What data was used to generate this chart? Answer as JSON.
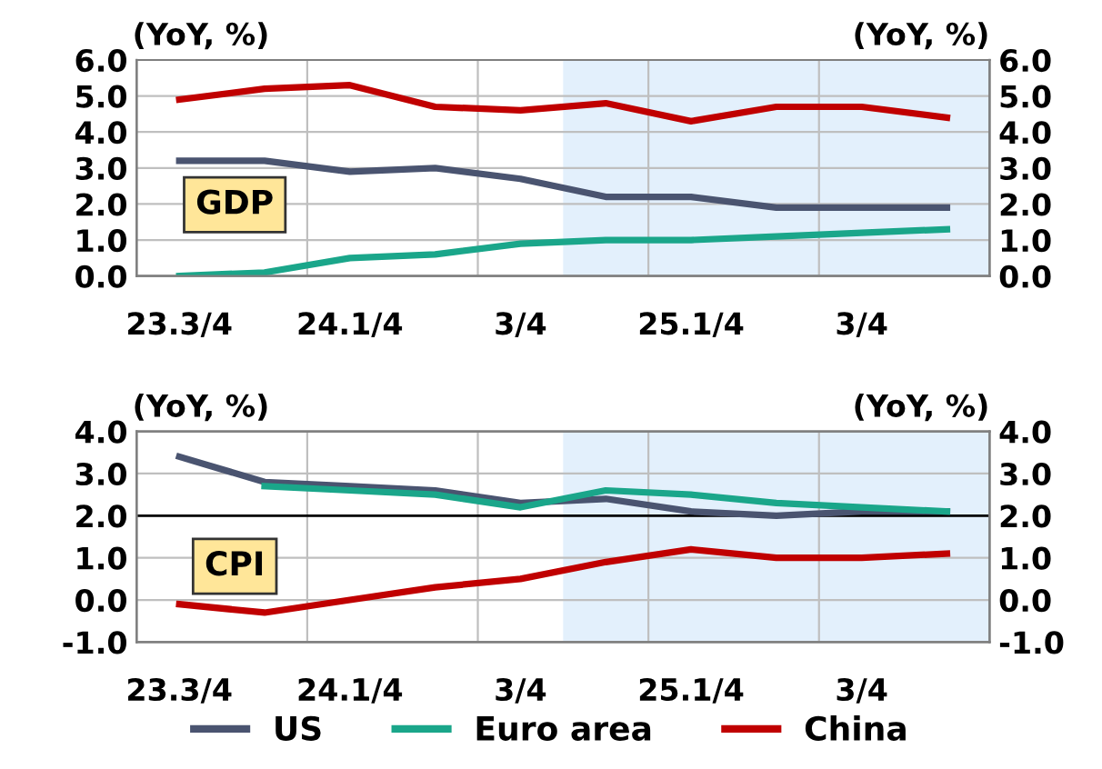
{
  "chart_data": [
    {
      "type": "line",
      "ylabel": "(YoY, %)",
      "y2label": "(YoY, %)",
      "annotations": [
        "GDP"
      ],
      "categories": [
        "23.3/4",
        null,
        "24.1/4",
        null,
        "3/4",
        null,
        "25.1/4",
        null,
        "3/4",
        null
      ],
      "ylim": [
        0,
        6
      ],
      "yticks": [
        {
          "value": 0,
          "label": "0.0"
        },
        {
          "value": 1,
          "label": "1.0"
        },
        {
          "value": 2,
          "label": "2.0"
        },
        {
          "value": 3,
          "label": "3.0"
        },
        {
          "value": 4,
          "label": "4.0"
        },
        {
          "value": 5,
          "label": "5.0"
        },
        {
          "value": 6,
          "label": "6.0"
        }
      ],
      "y2lim": [
        0,
        6
      ],
      "y2ticks": [
        {
          "value": 0,
          "label": "0.0"
        },
        {
          "value": 1,
          "label": "1.0"
        },
        {
          "value": 2,
          "label": "2.0"
        },
        {
          "value": 3,
          "label": "3.0"
        },
        {
          "value": 4,
          "label": "4.0"
        },
        {
          "value": 5,
          "label": "5.0"
        },
        {
          "value": 6,
          "label": "6.0"
        }
      ],
      "grid": "y",
      "series": [
        {
          "color": "#4a5470",
          "values": [
            3.2,
            3.2,
            2.9,
            3.0,
            2.7,
            2.2,
            2.2,
            1.9,
            1.9,
            1.9
          ]
        },
        {
          "color": "#1aa68a",
          "values": [
            0.0,
            0.1,
            0.5,
            0.6,
            0.9,
            1.0,
            1.0,
            1.1,
            1.2,
            1.3
          ]
        },
        {
          "color": "#c00000",
          "values": [
            4.9,
            5.2,
            5.3,
            4.7,
            4.6,
            4.8,
            4.3,
            4.7,
            4.7,
            4.4
          ]
        }
      ]
    },
    {
      "type": "line",
      "ylabel": "(YoY, %)",
      "y2label": "(YoY, %)",
      "annotations": [
        "CPI"
      ],
      "categories": [
        "23.3/4",
        null,
        "24.1/4",
        null,
        "3/4",
        null,
        "25.1/4",
        null,
        "3/4",
        null
      ],
      "ylim": [
        -1,
        4
      ],
      "yticks": [
        {
          "value": -1,
          "label": "-1.0"
        },
        {
          "value": 0,
          "label": "0.0"
        },
        {
          "value": 1,
          "label": "1.0"
        },
        {
          "value": 2,
          "label": "2.0"
        },
        {
          "value": 3,
          "label": "3.0"
        },
        {
          "value": 4,
          "label": "4.0"
        }
      ],
      "y2lim": [
        -1,
        4
      ],
      "y2ticks": [
        {
          "value": -1,
          "label": "-1.0"
        },
        {
          "value": 0,
          "label": "0.0"
        },
        {
          "value": 1,
          "label": "1.0"
        },
        {
          "value": 2,
          "label": "2.0"
        },
        {
          "value": 3,
          "label": "3.0"
        },
        {
          "value": 4,
          "label": "4.0"
        }
      ],
      "grid": "y",
      "legend": "bottom",
      "ref_lines": [
        {
          "axis": "y",
          "value": 2,
          "color": "#000000"
        }
      ],
      "series": [
        {
          "name": "US",
          "color": "#4a5470",
          "values": [
            3.4,
            2.8,
            2.7,
            2.6,
            2.3,
            2.4,
            2.1,
            2.0,
            2.1,
            2.1
          ]
        },
        {
          "name": "Euro area",
          "color": "#1aa68a",
          "values": [
            null,
            2.7,
            2.6,
            2.5,
            2.2,
            2.6,
            2.5,
            2.3,
            2.2,
            2.1
          ]
        },
        {
          "name": "China",
          "color": "#c00000",
          "values": [
            -0.1,
            -0.3,
            0.0,
            0.3,
            0.5,
            0.9,
            1.2,
            1.0,
            1.0,
            1.1
          ]
        }
      ]
    }
  ]
}
